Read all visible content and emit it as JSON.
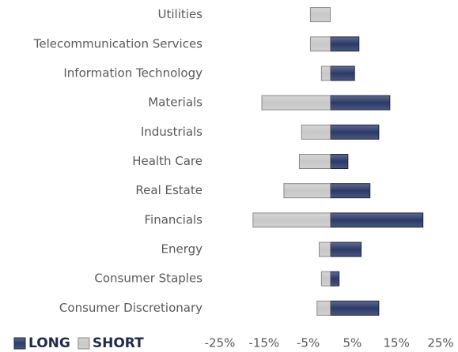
{
  "chart_data": {
    "type": "bar",
    "categories": [
      "Utilities",
      "Telecommunication Services",
      "Information Technology",
      "Materials",
      "Industrials",
      "Health Care",
      "Real Estate",
      "Financials",
      "Energy",
      "Consumer Staples",
      "Consumer Discretionary"
    ],
    "series": [
      {
        "name": "LONG",
        "color": "#2b3a67",
        "values": [
          0,
          6.5,
          5.5,
          13.5,
          11,
          4,
          9,
          21,
          7,
          2,
          11
        ]
      },
      {
        "name": "SHORT",
        "color": "#c8c8c8",
        "values": [
          -4.5,
          -4.5,
          -2,
          -15.5,
          -6.5,
          -7,
          -10.5,
          -17.5,
          -2.5,
          -2,
          -3
        ]
      }
    ],
    "xlim": [
      -25,
      25
    ],
    "xticks": [
      {
        "value": -25,
        "label": "-25%"
      },
      {
        "value": -15,
        "label": "-15%"
      },
      {
        "value": -5,
        "label": "-5%"
      },
      {
        "value": 5,
        "label": "5%"
      },
      {
        "value": 15,
        "label": "15%"
      },
      {
        "value": 25,
        "label": "25%"
      }
    ],
    "legend": "bottom-left"
  }
}
